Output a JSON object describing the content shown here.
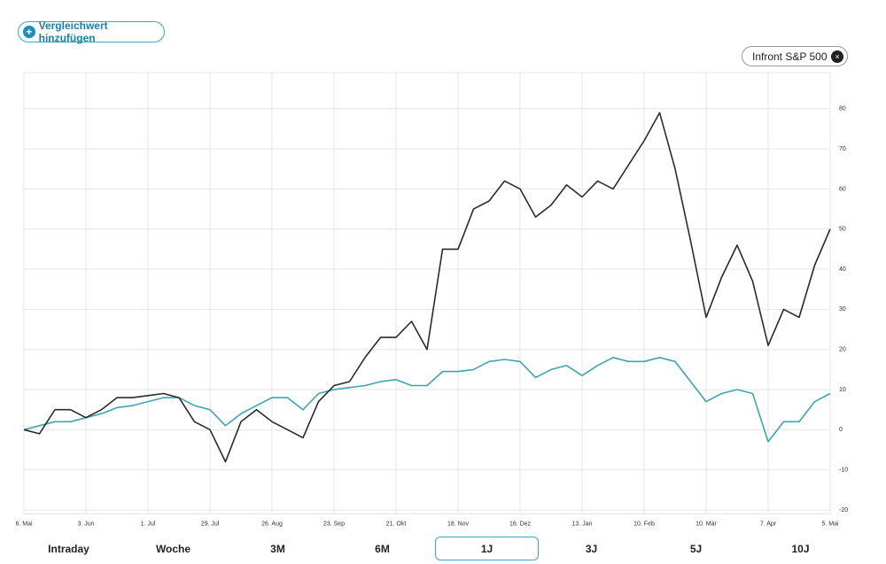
{
  "ui": {
    "add_compare": "Vergleichwert hinzufügen",
    "ranges": [
      "Intraday",
      "Woche",
      "3M",
      "6M",
      "1J",
      "3J",
      "5J",
      "10J"
    ],
    "selected_range": 4
  },
  "chart_data": {
    "type": "line",
    "categories": [
      "6. Mai",
      null,
      null,
      null,
      "3. Jun",
      null,
      null,
      null,
      "1. Jul",
      null,
      null,
      null,
      "29. Jul",
      null,
      null,
      null,
      "26. Aug",
      null,
      null,
      null,
      "23. Sep",
      null,
      null,
      null,
      "21. Okt",
      null,
      null,
      null,
      "18. Nov",
      null,
      null,
      null,
      "16. Dez",
      null,
      null,
      null,
      "13. Jan",
      null,
      null,
      null,
      "10. Feb",
      null,
      null,
      null,
      "10. Mär",
      null,
      null,
      null,
      "7. Apr",
      null,
      null,
      null,
      "5. Mai"
    ],
    "series": [
      {
        "color": "#2b2b2b",
        "values": [
          0,
          -1,
          5,
          5,
          3,
          5,
          8,
          8,
          8.5,
          9,
          8,
          2,
          0,
          -8,
          2,
          5,
          2,
          0,
          -2,
          7,
          11,
          12,
          18,
          23,
          23,
          27,
          20,
          45,
          45,
          55,
          57,
          62,
          60,
          53,
          56,
          61,
          58,
          62,
          60,
          66,
          72,
          79,
          65,
          47,
          28,
          38,
          46,
          37,
          21,
          30,
          28,
          41,
          50
        ]
      },
      {
        "name": "Infront S&P 500",
        "color": "#3aa5b7",
        "values": [
          0,
          1,
          2,
          2,
          3,
          4,
          5.5,
          6,
          7,
          8,
          8,
          6,
          5,
          1,
          4,
          6,
          8,
          8,
          5,
          9,
          10,
          10.5,
          11,
          12,
          12.5,
          11,
          11,
          14.5,
          14.5,
          15,
          17,
          17.5,
          17,
          13,
          15,
          16,
          13.5,
          16,
          18,
          17,
          17,
          18,
          17,
          12,
          7,
          9,
          10,
          9,
          -3,
          2,
          2,
          7,
          9
        ]
      }
    ],
    "ylim": [
      -21,
      89
    ],
    "yticks": [
      -20,
      -10,
      0,
      10,
      20,
      30,
      40,
      50,
      60,
      70,
      80
    ],
    "grid": true
  }
}
